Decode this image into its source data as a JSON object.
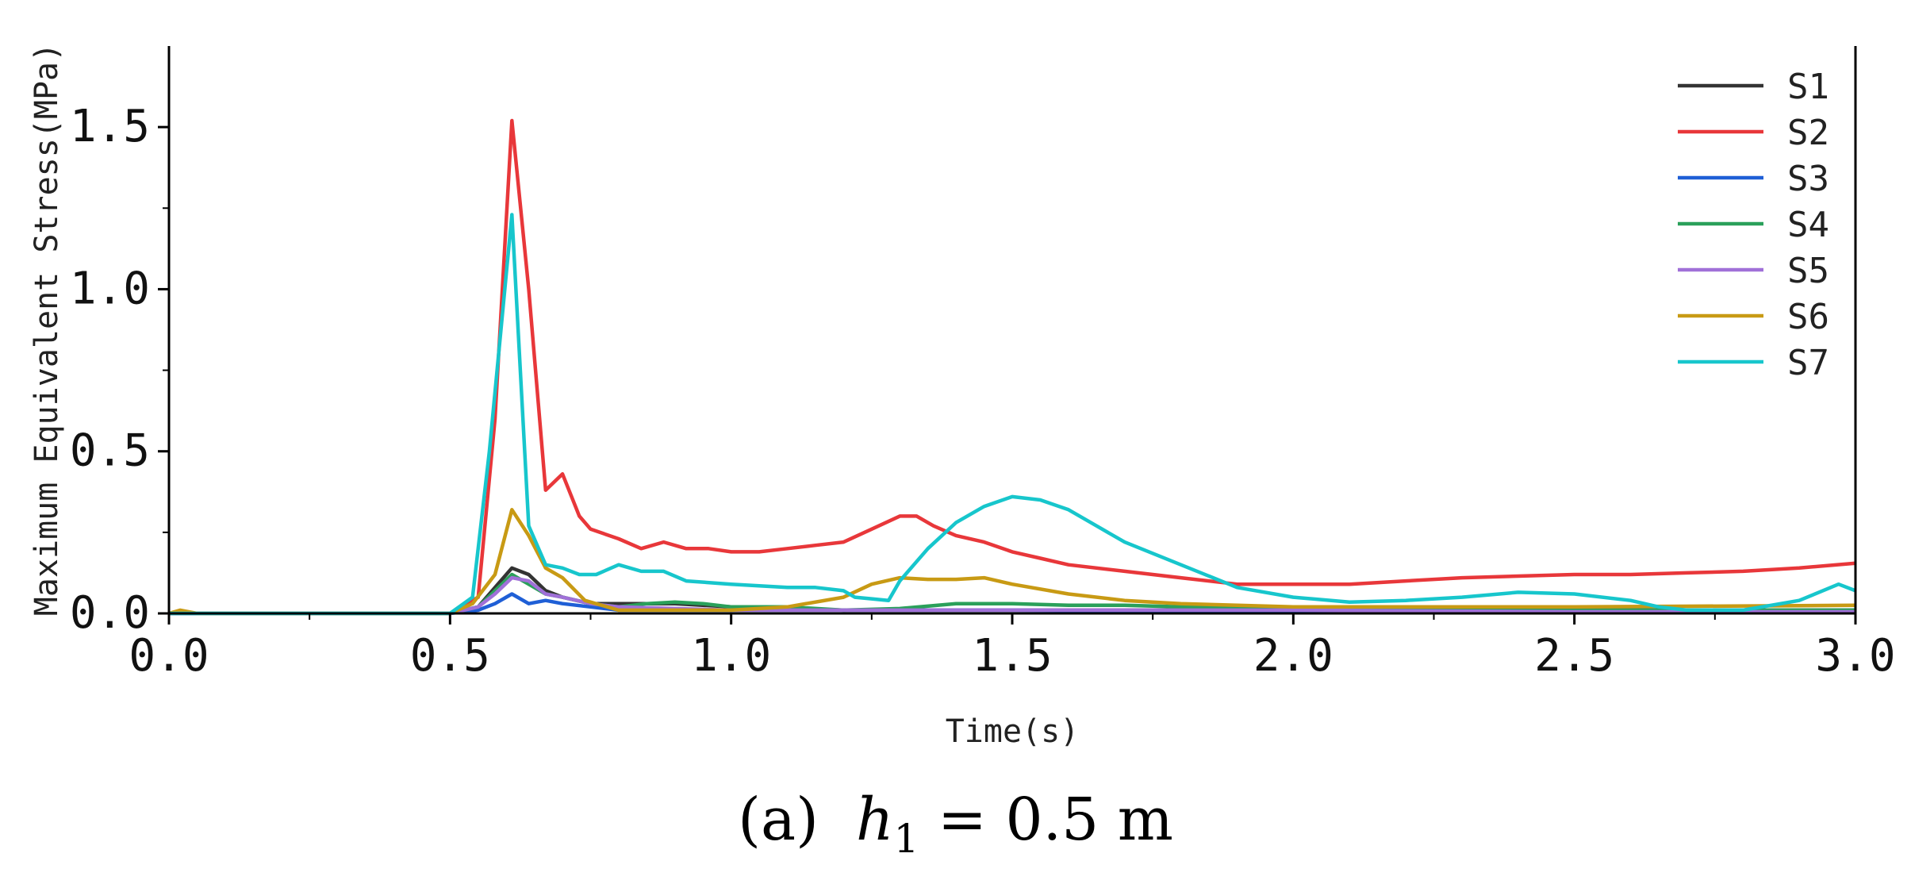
{
  "chart_data": {
    "type": "line",
    "ylabel": "Maximum Equivalent Stress(MPa)",
    "xlabel": "Time(s)",
    "xlim": [
      0.0,
      3.0
    ],
    "ylim": [
      0.0,
      1.75
    ],
    "xticks": [
      "0.0",
      "0.5",
      "1.0",
      "1.5",
      "2.0",
      "2.5",
      "3.0"
    ],
    "xtick_values": [
      0.0,
      0.5,
      1.0,
      1.5,
      2.0,
      2.5,
      3.0
    ],
    "yticks": [
      "0.0",
      "0.5",
      "1.0",
      "1.5"
    ],
    "ytick_values": [
      0.0,
      0.5,
      1.0,
      1.5
    ],
    "legend_position": "top-right",
    "series": [
      {
        "name": "S1",
        "color": "#333333",
        "x": [
          0,
          0.5,
          0.55,
          0.58,
          0.61,
          0.64,
          0.67,
          0.7,
          0.75,
          0.8,
          0.9,
          1.0,
          1.2,
          1.5,
          2.0,
          2.5,
          3.0
        ],
        "y": [
          0,
          0,
          0.02,
          0.08,
          0.14,
          0.12,
          0.07,
          0.05,
          0.03,
          0.03,
          0.03,
          0.02,
          0.01,
          0.01,
          0.01,
          0.01,
          0.01
        ]
      },
      {
        "name": "S2",
        "color": "#e8373a",
        "x": [
          0,
          0.5,
          0.55,
          0.58,
          0.61,
          0.64,
          0.67,
          0.7,
          0.73,
          0.75,
          0.8,
          0.84,
          0.88,
          0.92,
          0.96,
          1.0,
          1.05,
          1.1,
          1.15,
          1.2,
          1.25,
          1.3,
          1.33,
          1.36,
          1.4,
          1.45,
          1.5,
          1.55,
          1.6,
          1.7,
          1.8,
          1.9,
          2.0,
          2.1,
          2.2,
          2.3,
          2.4,
          2.5,
          2.6,
          2.7,
          2.8,
          2.9,
          3.0
        ],
        "y": [
          0,
          0,
          0.05,
          0.6,
          1.52,
          1.0,
          0.38,
          0.43,
          0.3,
          0.26,
          0.23,
          0.2,
          0.22,
          0.2,
          0.2,
          0.19,
          0.19,
          0.2,
          0.21,
          0.22,
          0.26,
          0.3,
          0.3,
          0.27,
          0.24,
          0.22,
          0.19,
          0.17,
          0.15,
          0.13,
          0.11,
          0.09,
          0.09,
          0.09,
          0.1,
          0.11,
          0.115,
          0.12,
          0.12,
          0.125,
          0.13,
          0.14,
          0.155
        ]
      },
      {
        "name": "S3",
        "color": "#1f5fd6",
        "x": [
          0,
          0.5,
          0.55,
          0.58,
          0.61,
          0.64,
          0.67,
          0.7,
          0.75,
          0.8,
          1.0,
          1.5,
          2.0,
          2.5,
          3.0
        ],
        "y": [
          0,
          0,
          0.01,
          0.03,
          0.06,
          0.03,
          0.04,
          0.03,
          0.02,
          0.01,
          0.01,
          0.01,
          0.005,
          0.005,
          0.005
        ]
      },
      {
        "name": "S4",
        "color": "#2aa05a",
        "x": [
          0,
          0.5,
          0.55,
          0.58,
          0.61,
          0.64,
          0.67,
          0.7,
          0.75,
          0.8,
          0.85,
          0.9,
          0.95,
          1.0,
          1.1,
          1.2,
          1.3,
          1.4,
          1.5,
          1.6,
          1.7,
          1.8,
          2.0,
          2.5,
          3.0
        ],
        "y": [
          0,
          0,
          0.02,
          0.07,
          0.12,
          0.09,
          0.06,
          0.05,
          0.03,
          0.02,
          0.03,
          0.035,
          0.03,
          0.02,
          0.02,
          0.01,
          0.015,
          0.03,
          0.03,
          0.025,
          0.025,
          0.02,
          0.015,
          0.01,
          0.01
        ]
      },
      {
        "name": "S5",
        "color": "#a070d8",
        "x": [
          0,
          0.5,
          0.55,
          0.58,
          0.61,
          0.64,
          0.67,
          0.7,
          0.75,
          0.8,
          1.0,
          1.5,
          2.0,
          2.5,
          3.0
        ],
        "y": [
          0,
          0,
          0.02,
          0.06,
          0.11,
          0.1,
          0.06,
          0.05,
          0.03,
          0.02,
          0.01,
          0.01,
          0.01,
          0.005,
          0.005
        ]
      },
      {
        "name": "S6",
        "color": "#c89a14",
        "x": [
          0,
          0.02,
          0.05,
          0.5,
          0.54,
          0.58,
          0.61,
          0.64,
          0.67,
          0.7,
          0.74,
          0.8,
          0.9,
          1.0,
          1.1,
          1.2,
          1.25,
          1.3,
          1.35,
          1.4,
          1.45,
          1.5,
          1.6,
          1.7,
          1.8,
          1.9,
          2.0,
          2.5,
          3.0
        ],
        "y": [
          0,
          0.01,
          0,
          0,
          0.03,
          0.12,
          0.32,
          0.24,
          0.14,
          0.11,
          0.04,
          0.01,
          0.01,
          0.01,
          0.02,
          0.05,
          0.09,
          0.11,
          0.105,
          0.105,
          0.11,
          0.09,
          0.06,
          0.04,
          0.03,
          0.025,
          0.02,
          0.02,
          0.025
        ]
      },
      {
        "name": "S7",
        "color": "#17c6cc",
        "x": [
          0,
          0.5,
          0.54,
          0.57,
          0.61,
          0.64,
          0.67,
          0.7,
          0.73,
          0.76,
          0.8,
          0.84,
          0.88,
          0.92,
          1.0,
          1.05,
          1.1,
          1.15,
          1.2,
          1.22,
          1.25,
          1.28,
          1.3,
          1.35,
          1.4,
          1.45,
          1.5,
          1.55,
          1.6,
          1.65,
          1.7,
          1.8,
          1.9,
          2.0,
          2.1,
          2.2,
          2.3,
          2.4,
          2.5,
          2.6,
          2.65,
          2.7,
          2.8,
          2.9,
          2.97,
          3.0
        ],
        "y": [
          0,
          0,
          0.05,
          0.5,
          1.23,
          0.27,
          0.15,
          0.14,
          0.12,
          0.12,
          0.15,
          0.13,
          0.13,
          0.1,
          0.09,
          0.085,
          0.08,
          0.08,
          0.07,
          0.05,
          0.045,
          0.04,
          0.1,
          0.2,
          0.28,
          0.33,
          0.36,
          0.35,
          0.32,
          0.27,
          0.22,
          0.15,
          0.08,
          0.05,
          0.035,
          0.04,
          0.05,
          0.065,
          0.06,
          0.04,
          0.02,
          0.01,
          0.01,
          0.04,
          0.09,
          0.07
        ]
      }
    ]
  },
  "caption": {
    "prefix": "(a)",
    "var": "h",
    "sub": "1",
    "rest": " = 0.5 m"
  }
}
